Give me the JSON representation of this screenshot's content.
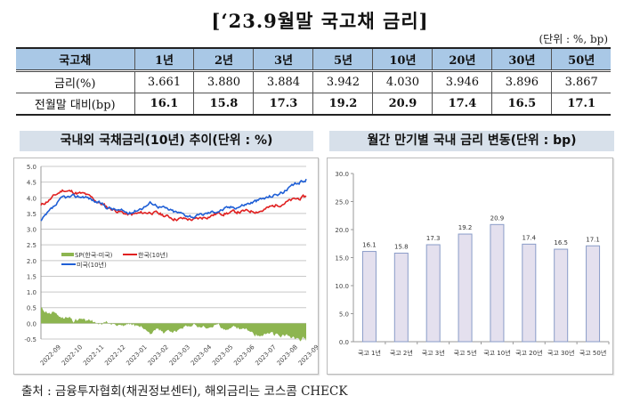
{
  "title": "[‘23.9월말 국고채 금리]",
  "unit": "(단위 : %, bp)",
  "table": {
    "headers": [
      "국고채",
      "1년",
      "2년",
      "3년",
      "5년",
      "10년",
      "20년",
      "30년",
      "50년"
    ],
    "rows": [
      {
        "label": "금리(%)",
        "values": [
          "3.661",
          "3.880",
          "3.884",
          "3.942",
          "4.030",
          "3.946",
          "3.896",
          "3.867"
        ]
      },
      {
        "label": "전월말 대비(bp)",
        "values": [
          "16.1",
          "15.8",
          "17.3",
          "19.2",
          "20.9",
          "17.4",
          "16.5",
          "17.1"
        ]
      }
    ]
  },
  "left_panel": {
    "title": "국내외 국채금리(10년) 추이(단위 : %)",
    "legend": {
      "spread": "SP(한국-미국)",
      "korea": "한국(10년)",
      "us": "미국(10년)"
    }
  },
  "right_panel": {
    "title": "월간 만기별 국내 금리 변동(단위 : bp)"
  },
  "footer": "출처 : 금융투자협회(채권정보센터), 해외금리는 코스콤 CHECK",
  "colors": {
    "header_bg": "#a9c8e6",
    "panel_title_bg": "#d7e0ea",
    "korea_line": "#e02020",
    "us_line": "#1f5fd6",
    "spread_fill": "#8db550",
    "bar_fill": "#e4e0ee",
    "bar_stroke": "#8a9cc8"
  },
  "chart_data": [
    {
      "type": "line",
      "title": "국내외 국채금리(10년) 추이(단위 : %)",
      "xlabel": "",
      "ylabel": "%",
      "ylim": [
        -0.5,
        5.0
      ],
      "yticks": [
        "5.0",
        "4.5",
        "4.0",
        "3.5",
        "3.0",
        "2.5",
        "2.0",
        "1.5",
        "1.0",
        "0.5",
        "0.0",
        "-0.5"
      ],
      "categories": [
        "2022-09",
        "2022-10",
        "2022-11",
        "2022-12",
        "2023-01",
        "2023-02",
        "2023-03",
        "2023-04",
        "2023-05",
        "2023-06",
        "2023-07",
        "2023-08",
        "2023-09"
      ],
      "grid": true,
      "legend_position": "inside-left",
      "series": [
        {
          "name": "한국(10년)",
          "type": "line",
          "values": [
            3.75,
            4.25,
            4.1,
            3.7,
            3.45,
            3.55,
            3.35,
            3.3,
            3.5,
            3.55,
            3.6,
            3.85,
            4.03
          ]
        },
        {
          "name": "미국(10년)",
          "type": "line",
          "values": [
            3.25,
            4.0,
            4.05,
            3.7,
            3.5,
            3.85,
            3.55,
            3.4,
            3.6,
            3.75,
            3.95,
            4.2,
            4.6
          ]
        },
        {
          "name": "SP(한국-미국)",
          "type": "area",
          "values": [
            0.5,
            0.25,
            0.05,
            0.0,
            -0.05,
            -0.3,
            -0.2,
            -0.1,
            -0.1,
            -0.2,
            -0.35,
            -0.35,
            -0.57
          ]
        }
      ]
    },
    {
      "type": "bar",
      "title": "월간 만기별 국내 금리 변동(단위 : bp)",
      "categories": [
        "국고 1년",
        "국고 2년",
        "국고 3년",
        "국고 5년",
        "국고 10년",
        "국고 20년",
        "국고 30년",
        "국고 50년"
      ],
      "values": [
        16.1,
        15.8,
        17.3,
        19.2,
        20.9,
        17.4,
        16.5,
        17.1
      ],
      "data_labels": [
        "16.1",
        "15.8",
        "17.3",
        "19.2",
        "20.9",
        "17.4",
        "16.5",
        "17.1"
      ],
      "yticks": [
        "30.0",
        "25.0",
        "20.0",
        "15.0",
        "10.0",
        "5.0",
        "0.0"
      ],
      "xlabel": "",
      "ylabel": "bp",
      "ylim": [
        0,
        30
      ],
      "grid": false
    }
  ]
}
